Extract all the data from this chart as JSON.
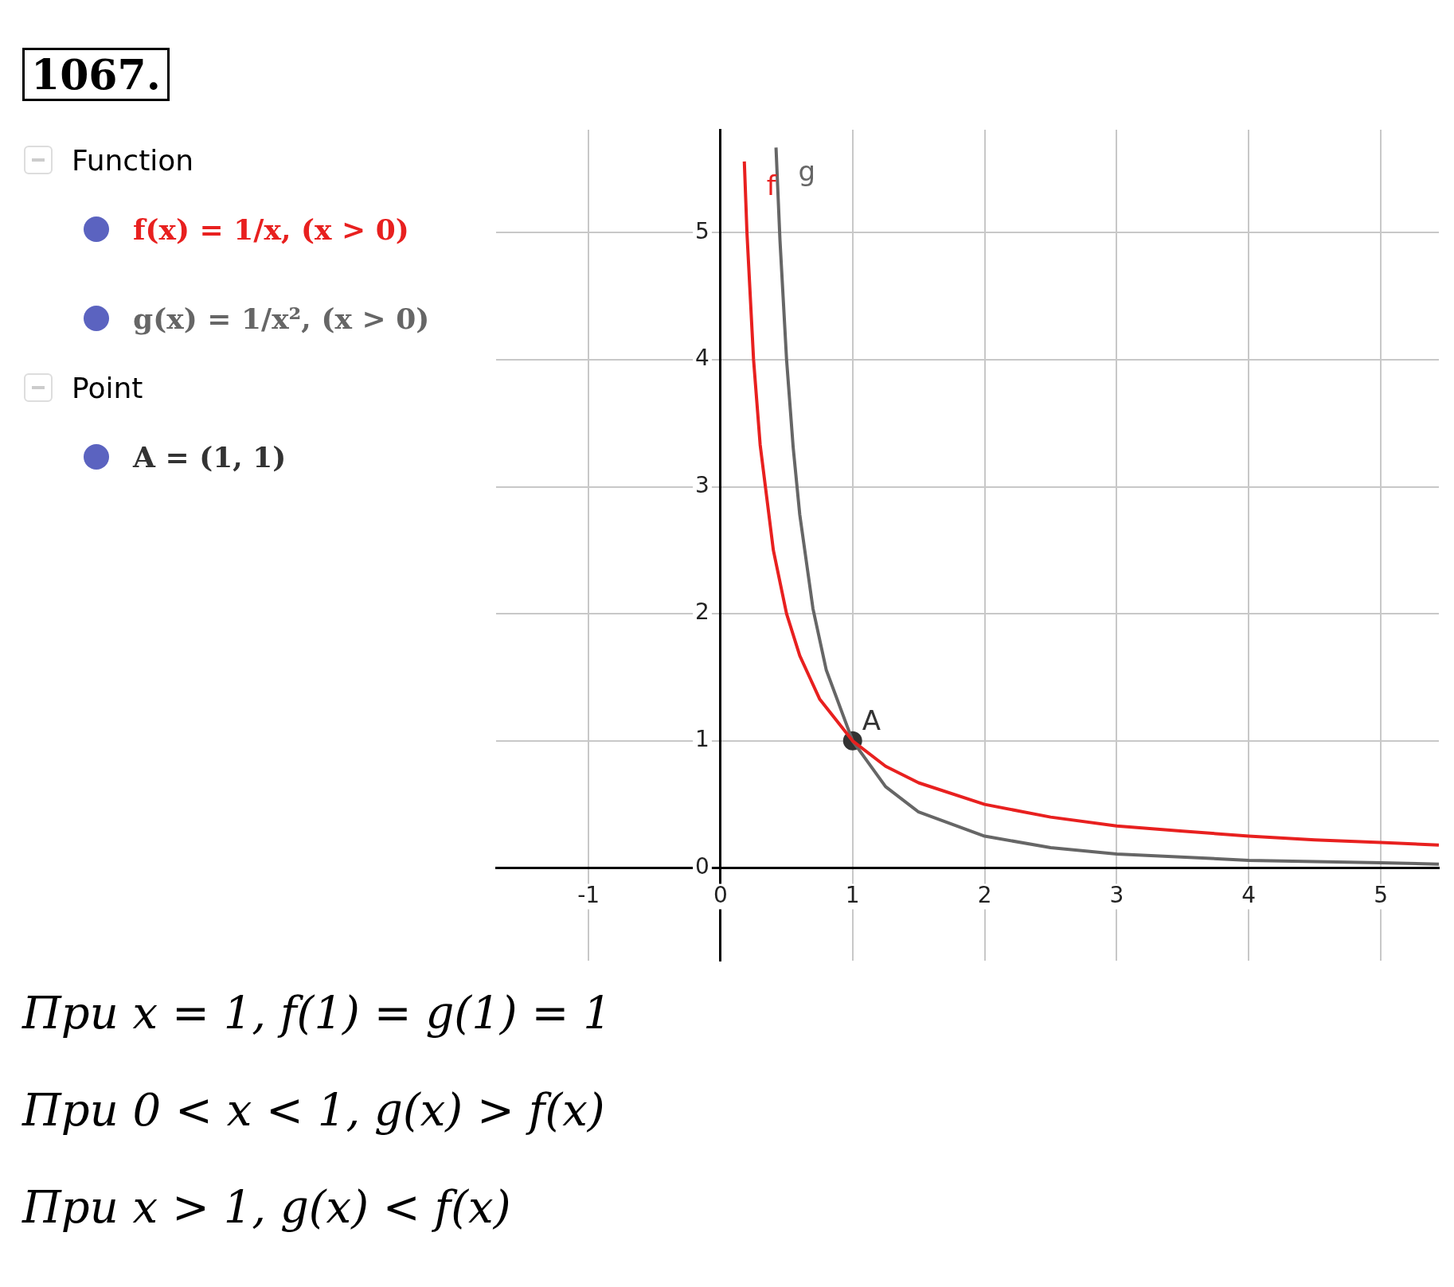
{
  "chart_data": {
    "type": "line",
    "title": "1067.",
    "series": [
      {
        "name": "f",
        "color": "#e8201f",
        "x": [
          0.18,
          0.2,
          0.25,
          0.3,
          0.4,
          0.5,
          0.6,
          0.75,
          1,
          1.25,
          1.5,
          2,
          2.5,
          3,
          3.5,
          4,
          4.5,
          5,
          5.44
        ],
        "values": [
          5.56,
          5,
          4,
          3.33,
          2.5,
          2,
          1.67,
          1.33,
          1,
          0.8,
          0.67,
          0.5,
          0.4,
          0.33,
          0.29,
          0.25,
          0.22,
          0.2,
          0.18
        ]
      },
      {
        "name": "g",
        "color": "#666666",
        "x": [
          0.42,
          0.45,
          0.5,
          0.55,
          0.6,
          0.7,
          0.8,
          1,
          1.25,
          1.5,
          2,
          2.5,
          3,
          4,
          5,
          5.44
        ],
        "values": [
          5.67,
          4.94,
          4,
          3.31,
          2.78,
          2.04,
          1.56,
          1,
          0.64,
          0.44,
          0.25,
          0.16,
          0.11,
          0.06,
          0.04,
          0.03
        ]
      },
      {
        "name": "A",
        "type": "scatter",
        "marker": "circle",
        "color": "#333333",
        "x": [
          1
        ],
        "values": [
          1
        ]
      }
    ],
    "xlim": [
      -1.7,
      5.44
    ],
    "ylim": [
      -0.73,
      5.81
    ],
    "xticks": [
      -1,
      0,
      1,
      2,
      3,
      4,
      5
    ],
    "yticks": [
      0,
      1,
      2,
      3,
      4,
      5
    ],
    "grid": true,
    "legend": false,
    "marker": "none",
    "line_style": "solid",
    "annotations": [
      "Function",
      "f(x) = 1/x,   (x > 0)",
      "g(x) = 1/x²,   (x > 0)",
      "Point",
      "A = (1, 1)",
      "При x = 1, f(1) = g(1) = 1",
      "При 0 < x < 1, g(x) > f(x)",
      "При x > 1, g(x) < f(x)"
    ]
  }
}
